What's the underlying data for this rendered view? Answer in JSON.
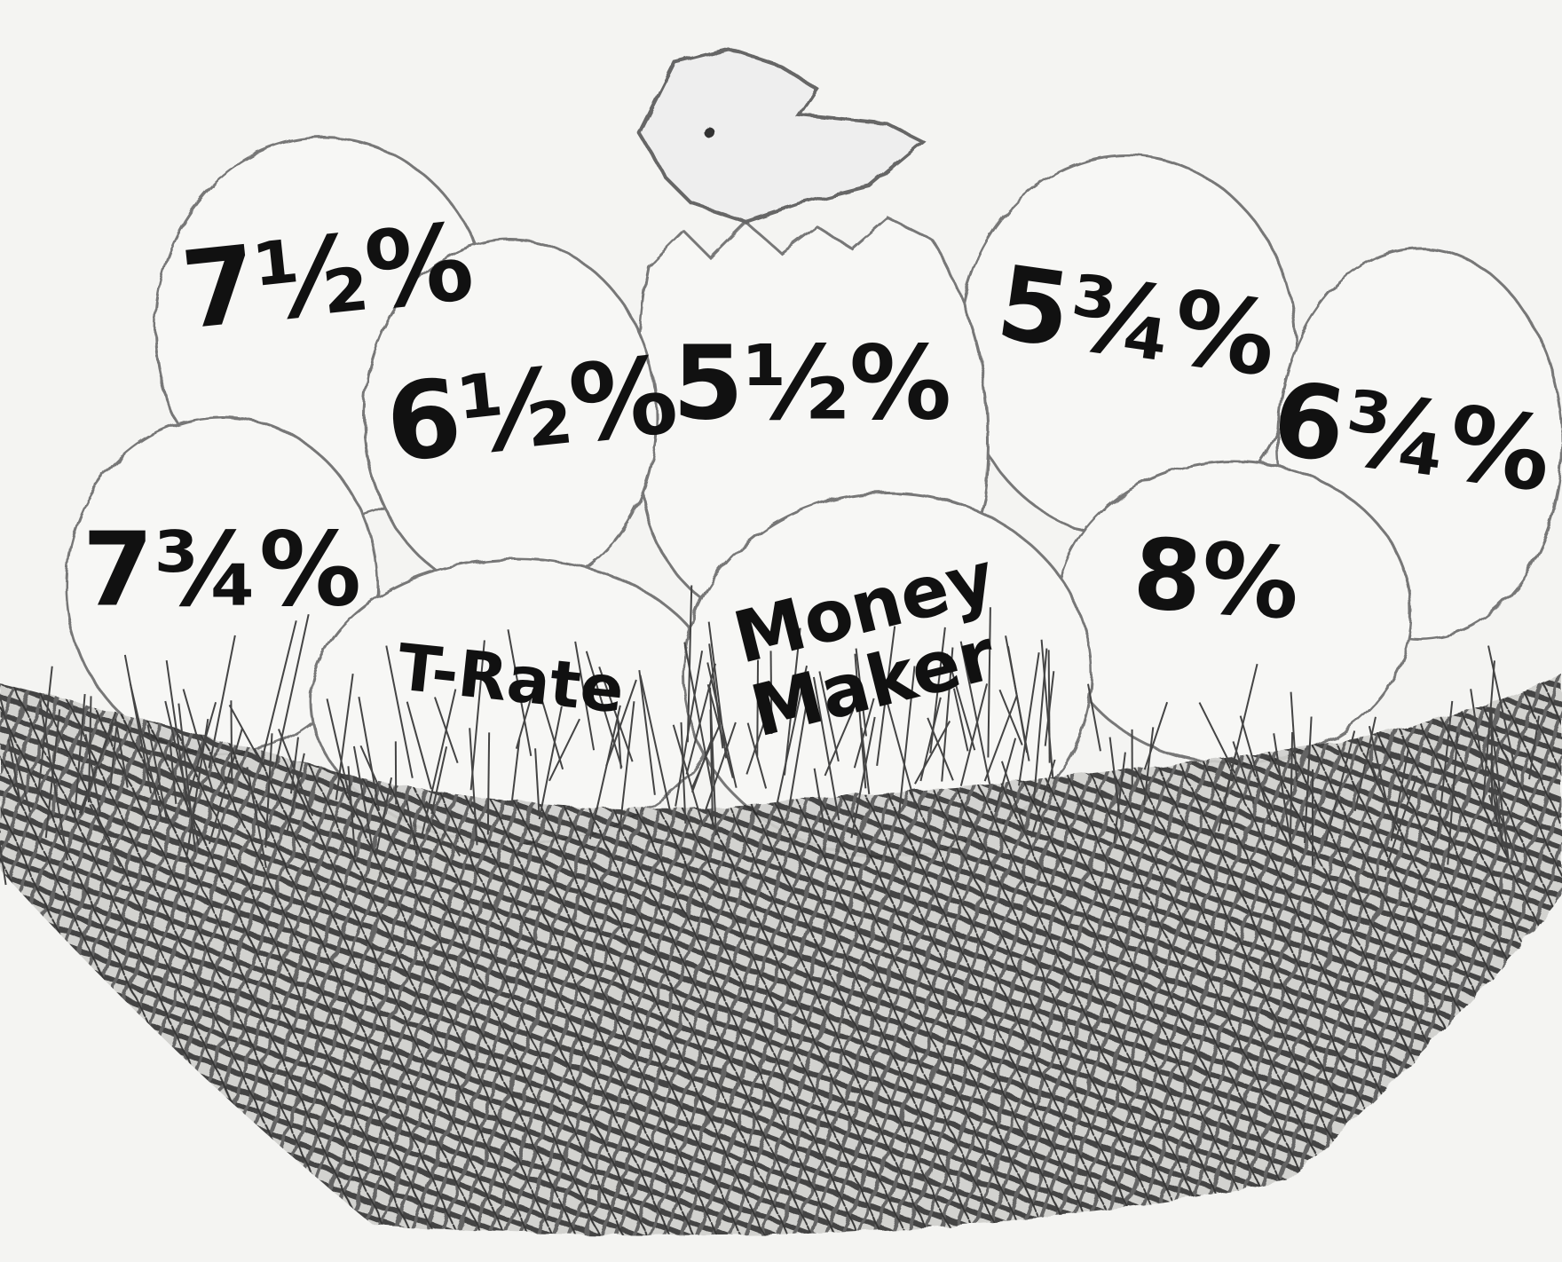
{
  "eggs": [
    {
      "lines": [
        "7½%"
      ]
    },
    {
      "lines": [
        "6½%"
      ]
    },
    {
      "lines": [
        "5½%"
      ]
    },
    {
      "lines": [
        "5¾%"
      ]
    },
    {
      "lines": [
        "6¾%"
      ]
    },
    {
      "lines": [
        "7¾%"
      ]
    },
    {
      "lines": [
        "T-Rate"
      ]
    },
    {
      "lines": [
        "Money",
        "Maker"
      ]
    },
    {
      "lines": [
        "8%"
      ]
    }
  ]
}
